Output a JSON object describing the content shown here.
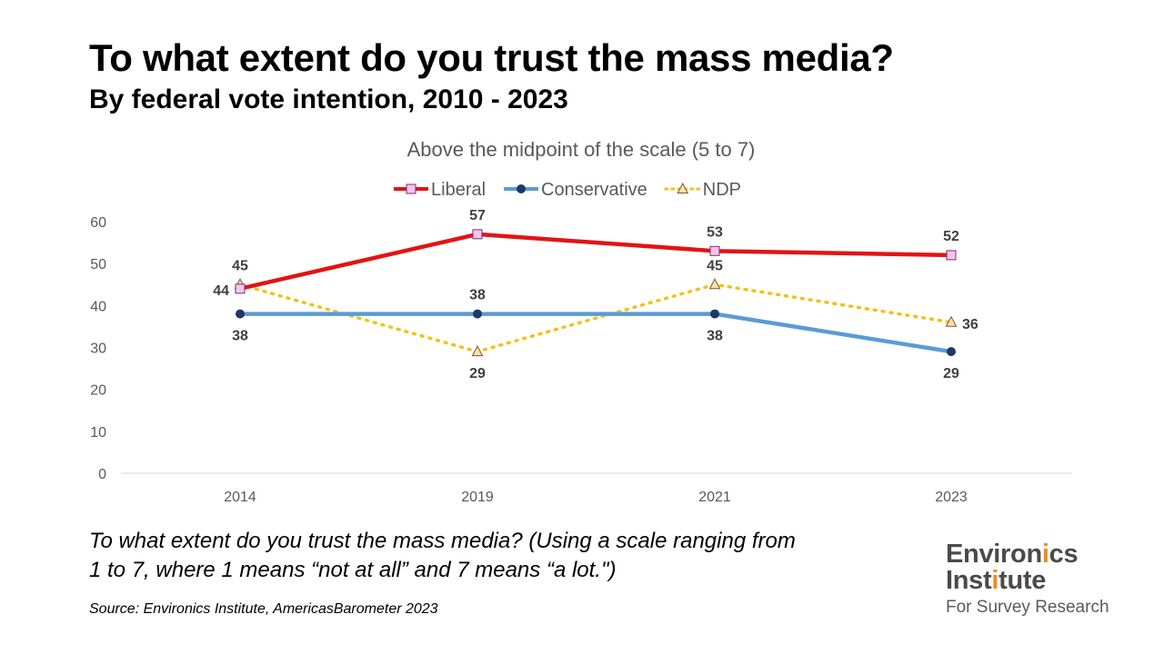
{
  "title": "To what extent do you trust the mass media?",
  "subtitle": "By federal vote intention, 2010 - 2023",
  "question_line1": "To what extent do you trust the mass media? (Using a scale ranging from",
  "question_line2": "1 to 7, where 1 means “not at all” and 7 means “a lot.\")",
  "source": "Source: Environics Institute, AmericasBarometer 2023",
  "logo": {
    "line1_a": "Environ",
    "line1_b": "i",
    "line1_c": "cs",
    "line2_a": "Inst",
    "line2_b": "i",
    "line2_c": "tute",
    "line3": "For Survey Research",
    "dark_color": "#4a4a4a",
    "accent_color": "#f08a1c"
  },
  "chart_data": {
    "type": "line",
    "title": "Above the midpoint of the scale (5 to 7)",
    "categories": [
      "2014",
      "2019",
      "2021",
      "2023"
    ],
    "ylim": [
      0,
      60
    ],
    "yticks": [
      0,
      10,
      20,
      30,
      40,
      50,
      60
    ],
    "grid": false,
    "legend_position": "top",
    "series": [
      {
        "name": "Liberal",
        "values": [
          44,
          57,
          53,
          52
        ],
        "color": "#e31313",
        "marker": "square",
        "marker_fill": "#f2c6ea",
        "marker_stroke": "#8a2a6a",
        "line_style": "solid",
        "label_positions": [
          "left",
          "above",
          "above",
          "above"
        ]
      },
      {
        "name": "Conservative",
        "values": [
          38,
          38,
          38,
          29
        ],
        "color": "#5b9bd5",
        "marker": "circle",
        "marker_fill": "#1f3864",
        "marker_stroke": "#1f3864",
        "line_style": "solid",
        "label_positions": [
          "below",
          "above",
          "below",
          "below"
        ]
      },
      {
        "name": "NDP",
        "values": [
          45,
          29,
          45,
          36
        ],
        "color": "#f2c21a",
        "marker": "triangle",
        "marker_fill": "#fde0b2",
        "marker_stroke": "#7a5a2a",
        "line_style": "dotted",
        "label_positions": [
          "above",
          "below",
          "above",
          "right"
        ]
      }
    ]
  }
}
